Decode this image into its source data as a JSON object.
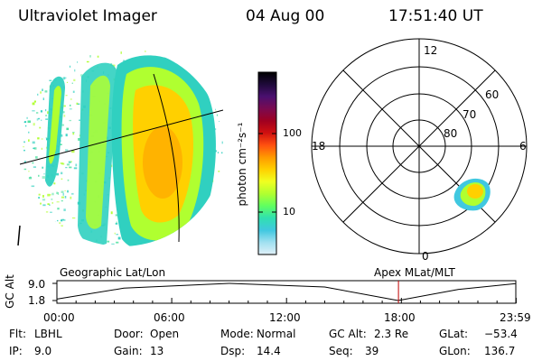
{
  "header": {
    "title": "Ultraviolet Imager",
    "date": "04 Aug 00",
    "time": "17:51:40 UT"
  },
  "colorbar": {
    "label": "photon cm⁻²s⁻¹",
    "ticks": [
      "100",
      "10"
    ],
    "colors": [
      "#000000",
      "#1f0a3a",
      "#4a1070",
      "#7a0a50",
      "#a00020",
      "#d01010",
      "#ff5010",
      "#ff9a00",
      "#ffd000",
      "#f0ff20",
      "#b0ff30",
      "#60ff60",
      "#30e0b0",
      "#40c8e0",
      "#a0e0f0",
      "#e0f0f8"
    ]
  },
  "polar_plot": {
    "hour_labels": {
      "top": "12",
      "left": "18",
      "right": "6",
      "bottom": "0"
    },
    "lat_labels": [
      "60",
      "70",
      "80"
    ],
    "colors": {
      "ring": "#000000",
      "spot_outer": "#40c8e0",
      "spot_mid": "#b0ff30",
      "spot_core": "#ffd000"
    }
  },
  "image_panel": {
    "colors": {
      "outer": "#30d0c0",
      "mid": "#b0ff30",
      "inner": "#ffd000",
      "core": "#ff9a00",
      "speckle": "#50e0a0"
    }
  },
  "orbit_strip": {
    "left_title": "Geographic Lat/Lon",
    "right_title": "Apex MLat/MLT",
    "y_axis_title": "GC Alt",
    "y_ticks": [
      "9.0",
      "1.8"
    ],
    "x_ticks": [
      "00:00",
      "06:00",
      "12:00",
      "18:00",
      "23:59"
    ],
    "marker_color": "#c00000",
    "chart_data": {
      "type": "line",
      "x_range": [
        "00:00",
        "23:59"
      ],
      "ylim": [
        1.8,
        9.0
      ],
      "series": [
        {
          "x": [
            "00:00",
            "03:30",
            "09:00",
            "14:00",
            "17:00",
            "17:50",
            "21:00",
            "23:59"
          ],
          "values": [
            2.4,
            7.0,
            9.0,
            7.5,
            3.0,
            1.8,
            6.5,
            8.9
          ]
        }
      ],
      "marker_x": "17:51"
    }
  },
  "footer": {
    "flt_label": "Flt:",
    "flt_value": "LBHL",
    "ip_label": "IP:",
    "ip_value": "9.0",
    "door_label": "Door:",
    "door_value": "Open",
    "gain_label": "Gain:",
    "gain_value": "13",
    "mode_label": "Mode:",
    "mode_value": "Normal",
    "dsp_label": "Dsp:",
    "dsp_value": "14.4",
    "gcalt_label": "GC Alt:",
    "gcalt_value": "2.3 Re",
    "seq_label": "Seq:",
    "seq_value": "39",
    "glat_label": "GLat:",
    "glat_value": "−53.4",
    "glon_label": "GLon:",
    "glon_value": "136.7"
  }
}
